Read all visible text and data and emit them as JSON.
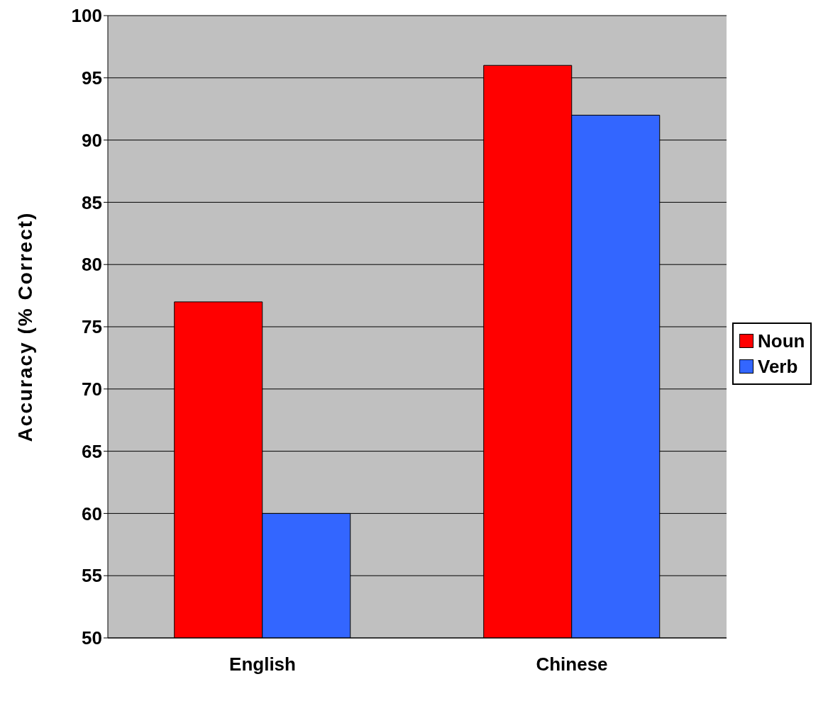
{
  "chart_data": {
    "type": "bar",
    "ylabel": "Accuracy (% Correct)",
    "categories": [
      "English",
      "Chinese"
    ],
    "series": [
      {
        "name": "Noun",
        "color": "#ff0000",
        "values": [
          77,
          96
        ]
      },
      {
        "name": "Verb",
        "color": "#3366ff",
        "values": [
          60,
          92
        ]
      }
    ],
    "ylim": [
      50,
      100
    ],
    "yticks": [
      50,
      55,
      60,
      65,
      70,
      75,
      80,
      85,
      90,
      95,
      100
    ],
    "grid": "y",
    "legend": "right"
  }
}
